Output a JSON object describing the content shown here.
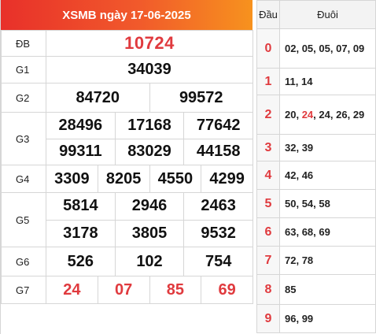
{
  "header": {
    "title": "XSMB ngày 17-06-2025"
  },
  "prizes": {
    "db": {
      "label": "ĐB",
      "numbers": [
        "10724"
      ]
    },
    "g1": {
      "label": "G1",
      "numbers": [
        "34039"
      ]
    },
    "g2": {
      "label": "G2",
      "numbers": [
        "84720",
        "99572"
      ]
    },
    "g3": {
      "label": "G3",
      "numbers": [
        "28496",
        "17168",
        "77642",
        "99311",
        "83029",
        "44158"
      ]
    },
    "g4": {
      "label": "G4",
      "numbers": [
        "3309",
        "8205",
        "4550",
        "4299"
      ]
    },
    "g5": {
      "label": "G5",
      "numbers": [
        "5814",
        "2946",
        "2463",
        "3178",
        "3805",
        "9532"
      ]
    },
    "g6": {
      "label": "G6",
      "numbers": [
        "526",
        "102",
        "754"
      ]
    },
    "g7": {
      "label": "G7",
      "numbers": [
        "24",
        "07",
        "85",
        "69"
      ]
    }
  },
  "loto": {
    "head_label": "Đầu",
    "tail_label": "Đuôi",
    "rows": [
      {
        "dau": "0",
        "duoi": [
          [
            "02",
            false
          ],
          [
            "05",
            false
          ],
          [
            "05",
            false
          ],
          [
            "07",
            false
          ],
          [
            "09",
            false
          ]
        ]
      },
      {
        "dau": "1",
        "duoi": [
          [
            "11",
            false
          ],
          [
            "14",
            false
          ]
        ]
      },
      {
        "dau": "2",
        "duoi": [
          [
            "20",
            false
          ],
          [
            "24",
            true
          ],
          [
            "24",
            false
          ],
          [
            "26",
            false
          ],
          [
            "29",
            false
          ]
        ]
      },
      {
        "dau": "3",
        "duoi": [
          [
            "32",
            false
          ],
          [
            "39",
            false
          ]
        ]
      },
      {
        "dau": "4",
        "duoi": [
          [
            "42",
            false
          ],
          [
            "46",
            false
          ]
        ]
      },
      {
        "dau": "5",
        "duoi": [
          [
            "50",
            false
          ],
          [
            "54",
            false
          ],
          [
            "58",
            false
          ]
        ]
      },
      {
        "dau": "6",
        "duoi": [
          [
            "63",
            false
          ],
          [
            "68",
            false
          ],
          [
            "69",
            false
          ]
        ]
      },
      {
        "dau": "7",
        "duoi": [
          [
            "72",
            false
          ],
          [
            "78",
            false
          ]
        ]
      },
      {
        "dau": "8",
        "duoi": [
          [
            "85",
            false
          ]
        ]
      },
      {
        "dau": "9",
        "duoi": [
          [
            "96",
            false
          ],
          [
            "99",
            false
          ]
        ]
      }
    ]
  },
  "colors": {
    "accent_red": "#e03a3e",
    "header_start": "#e8302a",
    "header_end": "#f7921e"
  }
}
